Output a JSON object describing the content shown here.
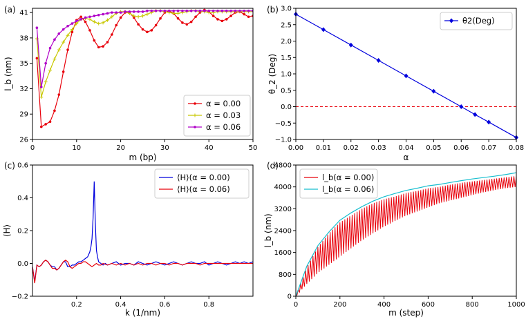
{
  "chart_data": [
    {
      "panel": "(a)",
      "type": "line",
      "xlabel": "m (bp)",
      "ylabel": "l_b (nm)",
      "xlim": [
        0,
        50
      ],
      "ylim": [
        26,
        41.5
      ],
      "xticks": [
        "0",
        "10",
        "20",
        "30",
        "40",
        "50"
      ],
      "yticks": [
        "26",
        "29",
        "32",
        "35",
        "38",
        "41"
      ],
      "legend_position": "lower-right",
      "series": [
        {
          "name": "α = 0.00",
          "color": "#e8000b",
          "marker": "dot",
          "x": [
            1,
            2,
            3,
            4,
            5,
            6,
            7,
            8,
            9,
            10,
            11,
            12,
            13,
            14,
            15,
            16,
            17,
            18,
            19,
            20,
            21,
            22,
            23,
            24,
            25,
            26,
            27,
            28,
            29,
            30,
            31,
            32,
            33,
            34,
            35,
            36,
            37,
            38,
            39,
            40,
            41,
            42,
            43,
            44,
            45,
            46,
            47,
            48,
            49,
            50
          ],
          "y": [
            35.6,
            27.5,
            27.8,
            28.1,
            29.4,
            31.3,
            34.0,
            36.6,
            38.7,
            40.1,
            40.5,
            39.9,
            38.9,
            37.7,
            36.9,
            37.0,
            37.5,
            38.4,
            39.5,
            40.4,
            41.0,
            41.0,
            40.4,
            39.6,
            39.0,
            38.7,
            38.9,
            39.5,
            40.3,
            41.0,
            41.2,
            40.9,
            40.3,
            39.8,
            39.6,
            39.9,
            40.5,
            41.0,
            41.3,
            41.1,
            40.6,
            40.2,
            40.0,
            40.2,
            40.6,
            41.0,
            41.1,
            40.8,
            40.5,
            40.6
          ]
        },
        {
          "name": "α = 0.03",
          "color": "#c8c800",
          "marker": "plus",
          "x": [
            1,
            2,
            3,
            4,
            5,
            6,
            7,
            8,
            9,
            10,
            11,
            12,
            13,
            14,
            15,
            16,
            17,
            18,
            19,
            20,
            21,
            22,
            23,
            24,
            25,
            26,
            27,
            28,
            29,
            30,
            31,
            32,
            33,
            34,
            35,
            36,
            37,
            38,
            39,
            40,
            41,
            42,
            43,
            44,
            45,
            46,
            47,
            48,
            49,
            50
          ],
          "y": [
            37.9,
            31.0,
            32.8,
            34.2,
            35.5,
            36.6,
            37.5,
            38.3,
            39.0,
            39.7,
            40.2,
            40.3,
            40.2,
            39.9,
            39.7,
            39.8,
            40.1,
            40.5,
            40.9,
            41.1,
            41.1,
            40.9,
            40.6,
            40.5,
            40.6,
            40.8,
            41.0,
            41.2,
            41.2,
            41.1,
            41.0,
            40.9,
            40.9,
            41.0,
            41.1,
            41.2,
            41.2,
            41.1,
            41.1,
            41.0,
            41.0,
            41.1,
            41.1,
            41.1,
            41.1,
            41.1,
            41.1,
            41.1,
            41.1,
            41.1
          ]
        },
        {
          "name": "α = 0.06",
          "color": "#b000c8",
          "marker": "dot",
          "x": [
            1,
            2,
            3,
            4,
            5,
            6,
            7,
            8,
            9,
            10,
            11,
            12,
            13,
            14,
            15,
            16,
            17,
            18,
            19,
            20,
            21,
            22,
            23,
            24,
            25,
            26,
            27,
            28,
            29,
            30,
            31,
            32,
            33,
            34,
            35,
            36,
            37,
            38,
            39,
            40,
            41,
            42,
            43,
            44,
            45,
            46,
            47,
            48,
            49,
            50
          ],
          "y": [
            39.2,
            32.2,
            35.0,
            36.8,
            37.8,
            38.5,
            39.0,
            39.4,
            39.7,
            40.0,
            40.2,
            40.4,
            40.5,
            40.6,
            40.7,
            40.8,
            40.9,
            41.0,
            41.0,
            41.0,
            41.1,
            41.1,
            41.1,
            41.1,
            41.1,
            41.2,
            41.2,
            41.2,
            41.2,
            41.2,
            41.2,
            41.2,
            41.2,
            41.2,
            41.2,
            41.2,
            41.2,
            41.2,
            41.2,
            41.2,
            41.2,
            41.2,
            41.2,
            41.2,
            41.2,
            41.2,
            41.2,
            41.2,
            41.2,
            41.2
          ]
        }
      ]
    },
    {
      "panel": "(b)",
      "type": "line",
      "xlabel": "α",
      "ylabel": "θ_2 (Deg)",
      "xlim": [
        0,
        0.08
      ],
      "ylim": [
        -1.0,
        3.0
      ],
      "xticks": [
        "0.00",
        "0.01",
        "0.02",
        "0.03",
        "0.04",
        "0.05",
        "0.06",
        "0.07",
        "0.08"
      ],
      "yticks": [
        "−1.0",
        "−0.5",
        "0.0",
        "0.5",
        "1.0",
        "1.5",
        "2.0",
        "2.5",
        "3.0"
      ],
      "legend_position": "top-right",
      "reference_line": {
        "y": 0.0,
        "color": "#e8000b",
        "style": "dashed"
      },
      "series": [
        {
          "name": "θ2(Deg)",
          "color": "#0000dd",
          "marker": "diamond",
          "x": [
            0.0,
            0.01,
            0.02,
            0.03,
            0.04,
            0.05,
            0.06,
            0.065,
            0.07,
            0.08
          ],
          "y": [
            2.82,
            2.35,
            1.88,
            1.41,
            0.94,
            0.47,
            0.0,
            -0.24,
            -0.47,
            -0.94
          ]
        }
      ]
    },
    {
      "panel": "(c)",
      "type": "line",
      "xlabel": "k (1/nm)",
      "ylabel": "⟨H⟩",
      "xlim": [
        0,
        1.0
      ],
      "ylim": [
        -0.2,
        0.6
      ],
      "xticks": [
        "0.2",
        "0.4",
        "0.6",
        "0.8"
      ],
      "yticks": [
        "−0.2",
        "0.0",
        "0.2",
        "0.4",
        "0.6"
      ],
      "legend_position": "top-right",
      "series": [
        {
          "name": "⟨H⟩(α = 0.00)",
          "color": "#0000dd",
          "x": [
            0.0,
            0.01,
            0.02,
            0.03,
            0.04,
            0.05,
            0.06,
            0.07,
            0.08,
            0.09,
            0.1,
            0.11,
            0.12,
            0.13,
            0.14,
            0.15,
            0.16,
            0.17,
            0.18,
            0.19,
            0.2,
            0.21,
            0.22,
            0.23,
            0.24,
            0.25,
            0.26,
            0.265,
            0.27,
            0.275,
            0.28,
            0.285,
            0.29,
            0.295,
            0.3,
            0.31,
            0.32,
            0.33,
            0.34,
            0.36,
            0.38,
            0.4,
            0.42,
            0.44,
            0.46,
            0.48,
            0.5,
            0.52,
            0.54,
            0.56,
            0.58,
            0.6,
            0.62,
            0.64,
            0.66,
            0.68,
            0.7,
            0.72,
            0.74,
            0.76,
            0.78,
            0.8,
            0.82,
            0.84,
            0.86,
            0.88,
            0.9,
            0.92,
            0.94,
            0.96,
            0.98,
            1.0
          ],
          "y": [
            -0.02,
            -0.11,
            -0.01,
            -0.02,
            -0.01,
            0.01,
            0.02,
            0.01,
            -0.01,
            -0.02,
            -0.02,
            -0.04,
            -0.03,
            -0.01,
            0.01,
            0.01,
            -0.02,
            -0.02,
            -0.01,
            -0.01,
            0.0,
            0.01,
            0.01,
            0.02,
            0.03,
            0.04,
            0.07,
            0.1,
            0.15,
            0.28,
            0.5,
            0.25,
            0.08,
            0.04,
            0.01,
            0.0,
            -0.01,
            0.0,
            -0.01,
            0.0,
            0.01,
            -0.01,
            0.0,
            0.0,
            -0.01,
            0.01,
            0.0,
            -0.01,
            0.0,
            0.01,
            0.0,
            -0.01,
            0.0,
            0.01,
            0.0,
            -0.01,
            0.0,
            0.01,
            0.0,
            0.0,
            0.01,
            -0.01,
            0.0,
            0.01,
            0.0,
            -0.01,
            0.0,
            0.01,
            0.0,
            0.01,
            0.0,
            0.01
          ]
        },
        {
          "name": "⟨H⟩(α = 0.06)",
          "color": "#e8000b",
          "x": [
            0.0,
            0.01,
            0.02,
            0.03,
            0.04,
            0.05,
            0.06,
            0.07,
            0.08,
            0.09,
            0.1,
            0.11,
            0.12,
            0.13,
            0.14,
            0.15,
            0.16,
            0.17,
            0.18,
            0.19,
            0.2,
            0.21,
            0.22,
            0.23,
            0.24,
            0.25,
            0.26,
            0.27,
            0.28,
            0.29,
            0.3,
            0.31,
            0.32,
            0.34,
            0.36,
            0.38,
            0.4,
            0.42,
            0.44,
            0.46,
            0.48,
            0.5,
            0.52,
            0.54,
            0.56,
            0.58,
            0.6,
            0.62,
            0.64,
            0.66,
            0.68,
            0.7,
            0.72,
            0.74,
            0.76,
            0.78,
            0.8,
            0.82,
            0.84,
            0.86,
            0.88,
            0.9,
            0.92,
            0.94,
            0.96,
            0.98,
            1.0
          ],
          "y": [
            -0.02,
            -0.12,
            -0.01,
            -0.02,
            -0.01,
            0.01,
            0.02,
            0.01,
            -0.01,
            -0.03,
            -0.03,
            -0.04,
            -0.03,
            -0.01,
            0.01,
            0.02,
            0.01,
            -0.02,
            -0.03,
            -0.02,
            -0.01,
            0.0,
            0.0,
            0.01,
            0.01,
            0.0,
            -0.01,
            -0.02,
            -0.01,
            0.0,
            -0.01,
            -0.01,
            0.0,
            -0.01,
            0.0,
            -0.01,
            0.0,
            -0.01,
            0.0,
            -0.01,
            0.0,
            -0.01,
            0.0,
            0.0,
            -0.01,
            0.0,
            0.0,
            -0.01,
            0.0,
            0.0,
            -0.01,
            0.0,
            0.0,
            0.0,
            -0.01,
            0.0,
            0.0,
            0.0,
            0.0,
            0.0,
            0.0,
            0.0,
            0.0,
            0.0,
            0.0,
            0.0,
            0.0
          ]
        }
      ]
    },
    {
      "panel": "(d)",
      "type": "line",
      "xlabel": "m (step)",
      "ylabel": "l_b (nm)",
      "xlim": [
        0,
        1000
      ],
      "ylim": [
        0,
        4800
      ],
      "xticks": [
        "0",
        "200",
        "400",
        "600",
        "800",
        "1000"
      ],
      "yticks": [
        "0",
        "800",
        "1600",
        "2400",
        "3200",
        "4000",
        "4800"
      ],
      "legend_position": "top-left",
      "series": [
        {
          "name": "l_b(α = 0.00)",
          "color": "#e8000b",
          "style": "oscillating band between lower and upper envelope",
          "x": [
            0,
            50,
            100,
            150,
            200,
            250,
            300,
            350,
            400,
            450,
            500,
            550,
            600,
            650,
            700,
            750,
            800,
            850,
            900,
            950,
            1000
          ],
          "upper": [
            0,
            1050,
            1800,
            2300,
            2700,
            2950,
            3200,
            3400,
            3550,
            3650,
            3780,
            3850,
            3950,
            4000,
            4080,
            4150,
            4200,
            4250,
            4300,
            4350,
            4400
          ],
          "lower": [
            0,
            450,
            850,
            1150,
            1450,
            1750,
            2050,
            2300,
            2550,
            2750,
            2950,
            3100,
            3250,
            3400,
            3500,
            3600,
            3700,
            3800,
            3880,
            3950,
            4000
          ]
        },
        {
          "name": "l_b(α = 0.06)",
          "color": "#17becf",
          "x": [
            0,
            50,
            100,
            150,
            200,
            250,
            300,
            350,
            400,
            450,
            500,
            550,
            600,
            650,
            700,
            750,
            800,
            850,
            900,
            950,
            1000
          ],
          "y": [
            0,
            1100,
            1850,
            2350,
            2780,
            3050,
            3280,
            3480,
            3640,
            3760,
            3870,
            3950,
            4040,
            4090,
            4160,
            4230,
            4290,
            4340,
            4390,
            4450,
            4520
          ]
        }
      ]
    }
  ]
}
